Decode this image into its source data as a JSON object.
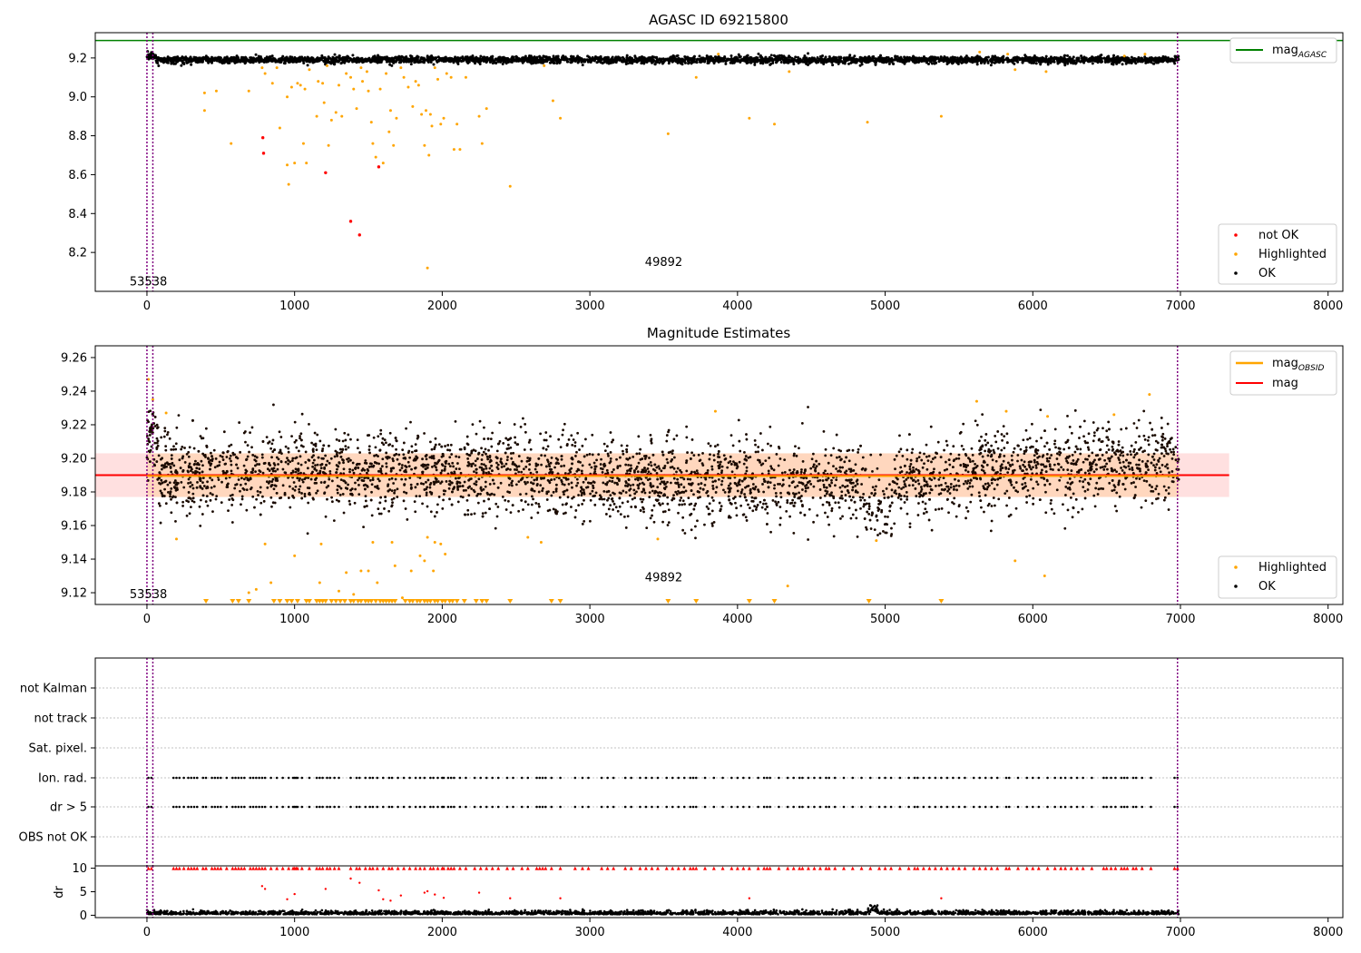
{
  "chart_data": [
    {
      "type": "scatter",
      "title": "AGASC ID 69215800",
      "xlim": [
        -350,
        8100
      ],
      "ylim": [
        8.0,
        9.33
      ],
      "x_ticks": [
        0,
        1000,
        2000,
        3000,
        4000,
        5000,
        6000,
        7000,
        8000
      ],
      "y_ticks": [
        8.2,
        8.4,
        8.6,
        8.8,
        9.0,
        9.2
      ],
      "vlines": [
        0,
        40,
        6980
      ],
      "hline": {
        "label": "mag",
        "sub": "AGASC",
        "y": 9.29,
        "color": "#008000"
      },
      "annotations": [
        {
          "text": "53538",
          "x": 10,
          "y": 8.05
        },
        {
          "text": "49892",
          "x": 3500,
          "y": 8.15
        }
      ],
      "ok_band": {
        "center": 9.19,
        "halfwidth": 0.035,
        "x_range": [
          0,
          6990
        ]
      },
      "series": [
        {
          "name": "not OK",
          "color": "#ff0000",
          "points": [
            [
              785,
              8.79
            ],
            [
              790,
              8.71
            ],
            [
              1210,
              8.61
            ],
            [
              1380,
              8.36
            ],
            [
              1440,
              8.29
            ],
            [
              1570,
              8.64
            ]
          ]
        },
        {
          "name": "Highlighted",
          "color": "#ffa500",
          "points": [
            [
              390,
              9.02
            ],
            [
              390,
              8.93
            ],
            [
              470,
              9.03
            ],
            [
              570,
              8.76
            ],
            [
              690,
              9.03
            ],
            [
              780,
              9.15
            ],
            [
              800,
              9.12
            ],
            [
              850,
              9.07
            ],
            [
              880,
              9.15
            ],
            [
              900,
              8.84
            ],
            [
              950,
              9.0
            ],
            [
              950,
              8.65
            ],
            [
              960,
              8.55
            ],
            [
              980,
              9.05
            ],
            [
              1000,
              8.66
            ],
            [
              1020,
              9.07
            ],
            [
              1040,
              9.06
            ],
            [
              1060,
              8.76
            ],
            [
              1070,
              9.04
            ],
            [
              1080,
              8.66
            ],
            [
              1100,
              9.14
            ],
            [
              1150,
              8.9
            ],
            [
              1160,
              9.08
            ],
            [
              1190,
              9.07
            ],
            [
              1200,
              8.97
            ],
            [
              1220,
              9.16
            ],
            [
              1230,
              8.75
            ],
            [
              1250,
              8.88
            ],
            [
              1280,
              8.92
            ],
            [
              1300,
              9.06
            ],
            [
              1320,
              8.9
            ],
            [
              1350,
              9.12
            ],
            [
              1380,
              9.1
            ],
            [
              1400,
              9.04
            ],
            [
              1420,
              8.94
            ],
            [
              1450,
              9.15
            ],
            [
              1460,
              9.08
            ],
            [
              1490,
              9.13
            ],
            [
              1500,
              9.03
            ],
            [
              1520,
              8.87
            ],
            [
              1530,
              8.76
            ],
            [
              1550,
              8.69
            ],
            [
              1580,
              9.04
            ],
            [
              1600,
              8.66
            ],
            [
              1620,
              9.12
            ],
            [
              1640,
              8.82
            ],
            [
              1650,
              8.93
            ],
            [
              1670,
              8.75
            ],
            [
              1690,
              8.89
            ],
            [
              1720,
              9.15
            ],
            [
              1740,
              9.1
            ],
            [
              1770,
              9.05
            ],
            [
              1800,
              8.95
            ],
            [
              1820,
              9.08
            ],
            [
              1840,
              9.06
            ],
            [
              1860,
              8.91
            ],
            [
              1880,
              8.75
            ],
            [
              1890,
              8.93
            ],
            [
              1910,
              8.7
            ],
            [
              1920,
              8.91
            ],
            [
              1930,
              8.85
            ],
            [
              1900,
              8.12
            ],
            [
              1950,
              9.15
            ],
            [
              1970,
              9.09
            ],
            [
              1990,
              8.86
            ],
            [
              2010,
              8.89
            ],
            [
              2030,
              9.12
            ],
            [
              2060,
              9.1
            ],
            [
              2080,
              8.73
            ],
            [
              2100,
              8.86
            ],
            [
              2120,
              8.73
            ],
            [
              2160,
              9.1
            ],
            [
              2250,
              8.9
            ],
            [
              2270,
              8.76
            ],
            [
              2300,
              8.94
            ],
            [
              2460,
              8.54
            ],
            [
              2690,
              9.16
            ],
            [
              2750,
              8.98
            ],
            [
              2800,
              8.89
            ],
            [
              3530,
              8.81
            ],
            [
              3720,
              9.1
            ],
            [
              3870,
              9.22
            ],
            [
              4080,
              8.89
            ],
            [
              4250,
              8.86
            ],
            [
              4350,
              9.13
            ],
            [
              4880,
              8.87
            ],
            [
              5380,
              8.9
            ],
            [
              5640,
              9.23
            ],
            [
              5830,
              9.22
            ],
            [
              5880,
              9.14
            ],
            [
              6090,
              9.13
            ],
            [
              6620,
              9.21
            ],
            [
              6760,
              9.22
            ]
          ]
        },
        {
          "name": "OK",
          "color": "#000000",
          "points": []
        }
      ]
    },
    {
      "type": "scatter",
      "title": "Magnitude Estimates",
      "xlim": [
        -350,
        8100
      ],
      "ylim": [
        9.113,
        9.267
      ],
      "x_ticks": [
        0,
        1000,
        2000,
        3000,
        4000,
        5000,
        6000,
        7000,
        8000
      ],
      "y_ticks": [
        9.12,
        9.14,
        9.16,
        9.18,
        9.2,
        9.22,
        9.24,
        9.26
      ],
      "vlines": [
        0,
        40,
        6980
      ],
      "annotations": [
        {
          "text": "53538",
          "x": 10,
          "y": 9.119
        },
        {
          "text": "49892",
          "x": 3500,
          "y": 9.129
        }
      ],
      "mag_line": {
        "label": "mag",
        "y": 9.19,
        "color": "#ff0000",
        "band": [
          9.177,
          9.203
        ]
      },
      "mag_obsid": {
        "label": "mag",
        "sub": "OBSID",
        "color": "#ffa500",
        "y": 9.19,
        "band": [
          9.177,
          9.203
        ]
      },
      "band_x_range": [
        -350,
        7330
      ],
      "ok_band": {
        "center": 9.189,
        "halfwidth": 0.012,
        "x_range": [
          0,
          6990
        ]
      },
      "series": [
        {
          "name": "Highlighted",
          "color": "#ffa500",
          "points": [
            [
              10,
              9.247
            ],
            [
              40,
              9.235
            ],
            [
              130,
              9.227
            ],
            [
              200,
              9.152
            ],
            [
              690,
              9.12
            ],
            [
              740,
              9.122
            ],
            [
              800,
              9.149
            ],
            [
              840,
              9.126
            ],
            [
              1000,
              9.142
            ],
            [
              1170,
              9.126
            ],
            [
              1180,
              9.149
            ],
            [
              1300,
              9.121
            ],
            [
              1350,
              9.132
            ],
            [
              1400,
              9.119
            ],
            [
              1450,
              9.133
            ],
            [
              1500,
              9.133
            ],
            [
              1530,
              9.15
            ],
            [
              1560,
              9.126
            ],
            [
              1660,
              9.15
            ],
            [
              1680,
              9.136
            ],
            [
              1730,
              9.117
            ],
            [
              1790,
              9.133
            ],
            [
              1850,
              9.142
            ],
            [
              1880,
              9.139
            ],
            [
              1900,
              9.153
            ],
            [
              1940,
              9.133
            ],
            [
              1950,
              9.15
            ],
            [
              1990,
              9.149
            ],
            [
              2020,
              9.143
            ],
            [
              2580,
              9.153
            ],
            [
              2670,
              9.15
            ],
            [
              3460,
              9.152
            ],
            [
              3850,
              9.228
            ],
            [
              4340,
              9.124
            ],
            [
              4940,
              9.151
            ],
            [
              5620,
              9.234
            ],
            [
              5820,
              9.228
            ],
            [
              5880,
              9.139
            ],
            [
              6080,
              9.13
            ],
            [
              6100,
              9.225
            ],
            [
              6550,
              9.226
            ],
            [
              6790,
              9.238
            ]
          ]
        },
        {
          "name": "OK",
          "color": "#000000",
          "points": []
        }
      ],
      "limit_markers_x": [
        400,
        580,
        620,
        690,
        860,
        900,
        950,
        980,
        1020,
        1080,
        1100,
        1150,
        1170,
        1190,
        1210,
        1250,
        1280,
        1310,
        1340,
        1380,
        1400,
        1430,
        1450,
        1480,
        1500,
        1520,
        1550,
        1580,
        1600,
        1620,
        1640,
        1660,
        1680,
        1750,
        1780,
        1800,
        1830,
        1850,
        1880,
        1900,
        1920,
        1950,
        1970,
        2000,
        2020,
        2050,
        2070,
        2100,
        2150,
        2230,
        2270,
        2300,
        2460,
        2740,
        2800,
        3530,
        3720,
        4080,
        4250,
        4890,
        5380
      ]
    },
    {
      "type": "scatter",
      "xlim": [
        -350,
        8100
      ],
      "x_ticks": [
        0,
        1000,
        2000,
        3000,
        4000,
        5000,
        6000,
        7000,
        8000
      ],
      "rows": [
        "not Kalman",
        "not track",
        "Sat. pixel.",
        "Ion. rad.",
        "dr > 5",
        "OBS not OK"
      ],
      "flag_x": [
        10,
        30,
        180,
        200,
        220,
        250,
        280,
        300,
        320,
        340,
        380,
        400,
        440,
        460,
        480,
        500,
        540,
        580,
        600,
        620,
        640,
        660,
        700,
        720,
        740,
        760,
        780,
        800,
        840,
        880,
        920,
        960,
        990,
        1000,
        1010,
        1020,
        1050,
        1100,
        1150,
        1170,
        1190,
        1220,
        1240,
        1270,
        1300,
        1380,
        1420,
        1440,
        1480,
        1510,
        1530,
        1560,
        1600,
        1640,
        1660,
        1700,
        1740,
        1780,
        1820,
        1850,
        1880,
        1920,
        1940,
        1970,
        2000,
        2010,
        2040,
        2060,
        2080,
        2120,
        2160,
        2220,
        2260,
        2300,
        2340,
        2380,
        2440,
        2480,
        2540,
        2580,
        2640,
        2660,
        2680,
        2700,
        2740,
        2800,
        2900,
        2950,
        2990,
        3080,
        3120,
        3160,
        3240,
        3280,
        3340,
        3380,
        3420,
        3460,
        3520,
        3560,
        3600,
        3640,
        3680,
        3700,
        3720,
        3780,
        3840,
        3900,
        3960,
        4000,
        4040,
        4080,
        4140,
        4180,
        4200,
        4220,
        4280,
        4340,
        4380,
        4420,
        4440,
        4480,
        4520,
        4560,
        4600,
        4620,
        4660,
        4720,
        4780,
        4840,
        4900,
        4960,
        5000,
        5040,
        5100,
        5160,
        5200,
        5220,
        5260,
        5300,
        5340,
        5380,
        5420,
        5460,
        5500,
        5540,
        5600,
        5640,
        5680,
        5720,
        5760,
        5820,
        5840,
        5900,
        5960,
        6000,
        6040,
        6100,
        6150,
        6190,
        6220,
        6260,
        6300,
        6340,
        6400,
        6480,
        6500,
        6530,
        6560,
        6600,
        6620,
        6640,
        6680,
        6700,
        6740,
        6800,
        6960,
        6980
      ]
    },
    {
      "type": "scatter",
      "xlim": [
        -350,
        8100
      ],
      "ylim": [
        -0.5,
        10.5
      ],
      "ylabel": "dr",
      "x_ticks": [
        0,
        1000,
        2000,
        3000,
        4000,
        5000,
        6000,
        7000,
        8000
      ],
      "y_ticks": [
        0,
        5,
        10
      ],
      "high_points": [
        [
          780,
          6.2
        ],
        [
          800,
          5.6
        ],
        [
          950,
          3.4
        ],
        [
          1000,
          4.5
        ],
        [
          1210,
          5.6
        ],
        [
          1380,
          7.8
        ],
        [
          1440,
          6.9
        ],
        [
          1570,
          5.3
        ],
        [
          1600,
          3.4
        ],
        [
          1650,
          3.1
        ],
        [
          1720,
          4.2
        ],
        [
          1880,
          4.8
        ],
        [
          1900,
          5.1
        ],
        [
          1950,
          4.4
        ],
        [
          2010,
          3.7
        ],
        [
          2250,
          4.8
        ],
        [
          2460,
          3.6
        ],
        [
          2800,
          3.6
        ],
        [
          4080,
          3.6
        ],
        [
          5380,
          3.6
        ]
      ],
      "capped_x_ref": "flag_x"
    }
  ]
}
